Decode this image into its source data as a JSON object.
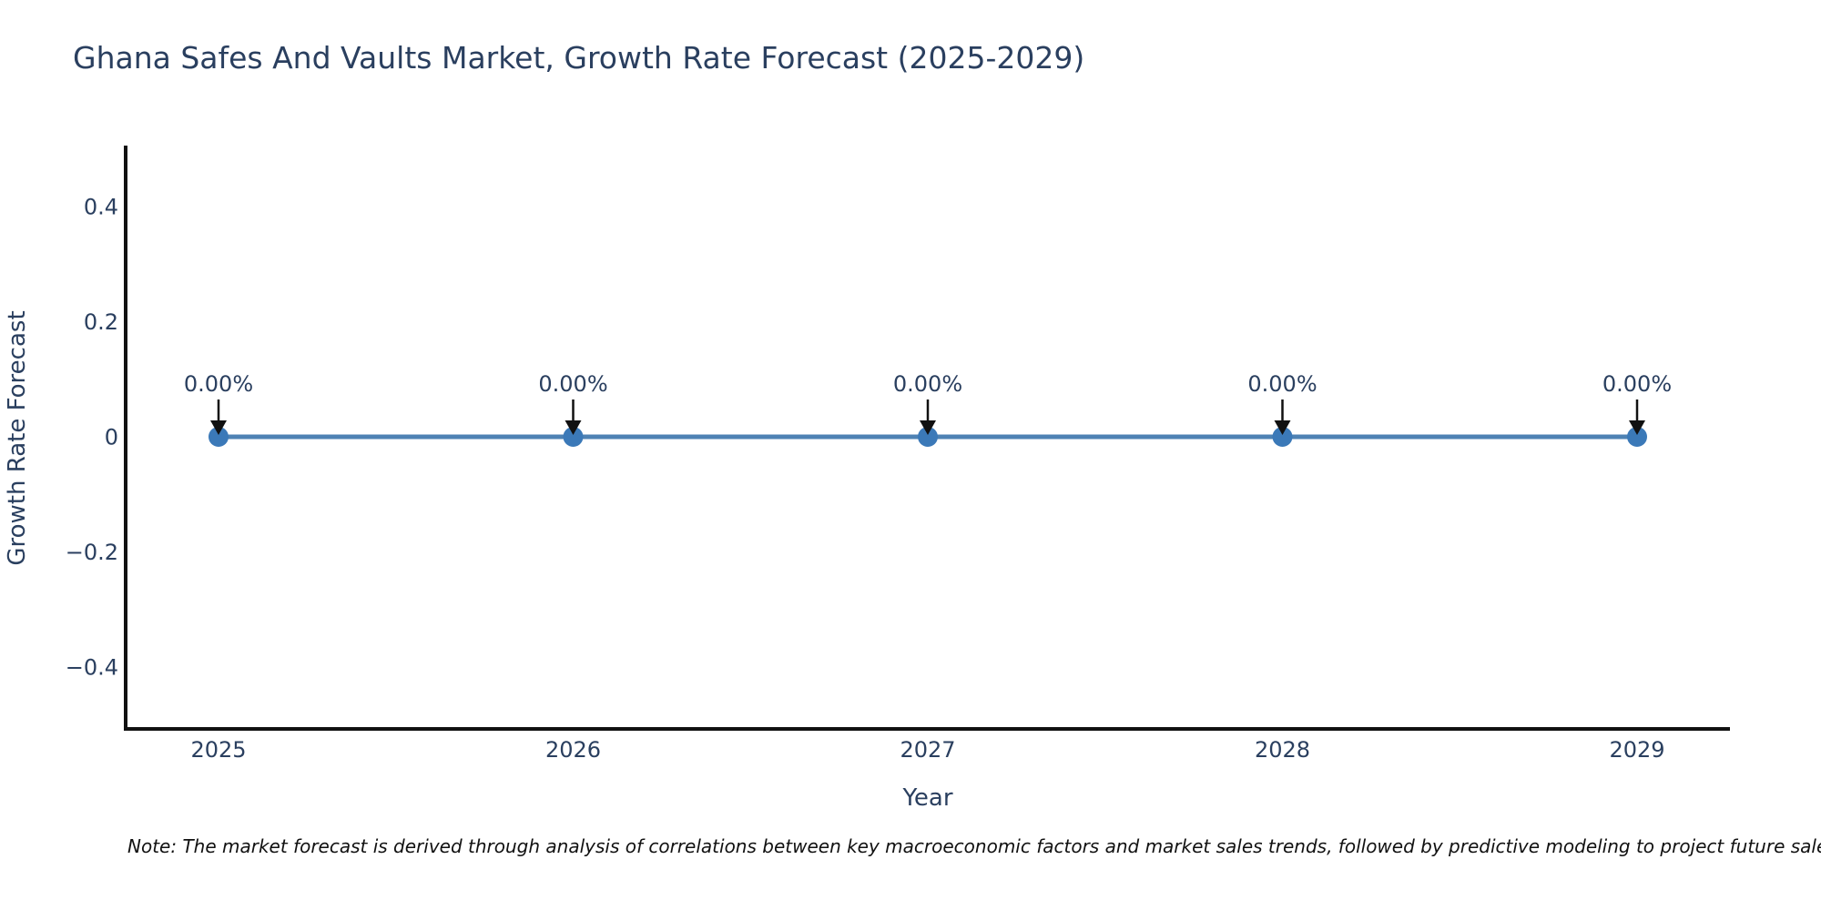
{
  "header": {
    "title": "Ghana Safes And Vaults Market, Growth Rate Forecast (2025-2029)"
  },
  "footnote": {
    "text": "Note: The market forecast is derived through analysis of correlations between key macroeconomic factors and market sales trends, followed by predictive modeling to project future sales"
  },
  "chart_data": {
    "type": "line",
    "title": "Ghana Safes And Vaults Market, Growth Rate Forecast (2025-2029)",
    "categories": [
      "2025",
      "2026",
      "2027",
      "2028",
      "2029"
    ],
    "series": [
      {
        "name": "Growth Rate Forecast",
        "values": [
          0,
          0,
          0,
          0,
          0
        ],
        "point_labels": [
          "0.00%",
          "0.00%",
          "0.00%",
          "0.00%",
          "0.00%"
        ]
      }
    ],
    "xlabel": "Year",
    "ylabel": "Growth Rate Forecast",
    "ylim": [
      -0.51,
      0.51
    ],
    "yticks": [
      0.4,
      0.2,
      0,
      -0.2,
      -0.4
    ],
    "ytick_labels": [
      "0.4",
      "0.2",
      "0",
      "−0.2",
      "−0.4"
    ],
    "grid": false,
    "legend_position": "none",
    "annotations_style": "label-with-down-arrow",
    "colors": {
      "line": "#4e82b4",
      "marker": "#3b79b8",
      "axis_line": "#111111",
      "arrow": "#111111",
      "text": "#2a3f5f",
      "note_text": "#111111",
      "background": "#ffffff"
    }
  }
}
